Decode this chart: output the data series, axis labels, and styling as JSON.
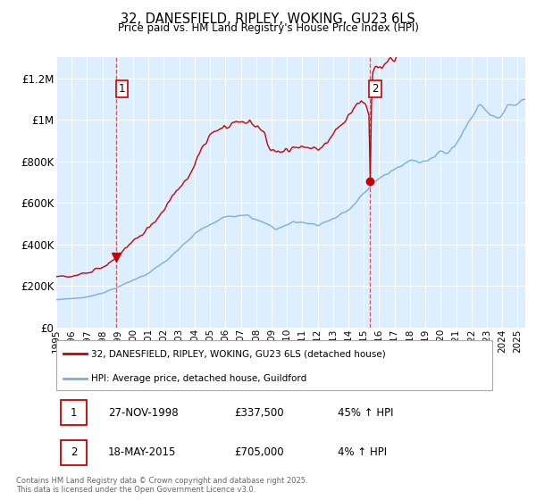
{
  "title": "32, DANESFIELD, RIPLEY, WOKING, GU23 6LS",
  "subtitle": "Price paid vs. HM Land Registry's House Price Index (HPI)",
  "ylabel_ticks": [
    "£0",
    "£200K",
    "£400K",
    "£600K",
    "£800K",
    "£1M",
    "£1.2M"
  ],
  "ytick_vals": [
    0,
    200000,
    400000,
    600000,
    800000,
    1000000,
    1200000
  ],
  "ylim": [
    0,
    1300000
  ],
  "xlim_start": 1995.0,
  "xlim_end": 2025.5,
  "sale1_date": 1998.91,
  "sale1_price": 337500,
  "sale2_date": 2015.38,
  "sale2_price": 705000,
  "red_line_color": "#cc0000",
  "blue_line_color": "#7aade0",
  "bg_color": "#ddeeff",
  "grid_color": "#ffffff",
  "legend1": "32, DANESFIELD, RIPLEY, WOKING, GU23 6LS (detached house)",
  "legend2": "HPI: Average price, detached house, Guildford",
  "annotation1_date": "27-NOV-1998",
  "annotation1_price": "£337,500",
  "annotation1_hpi": "45% ↑ HPI",
  "annotation2_date": "18-MAY-2015",
  "annotation2_price": "£705,000",
  "annotation2_hpi": "4% ↑ HPI",
  "footer": "Contains HM Land Registry data © Crown copyright and database right 2025.\nThis data is licensed under the Open Government Licence v3.0."
}
